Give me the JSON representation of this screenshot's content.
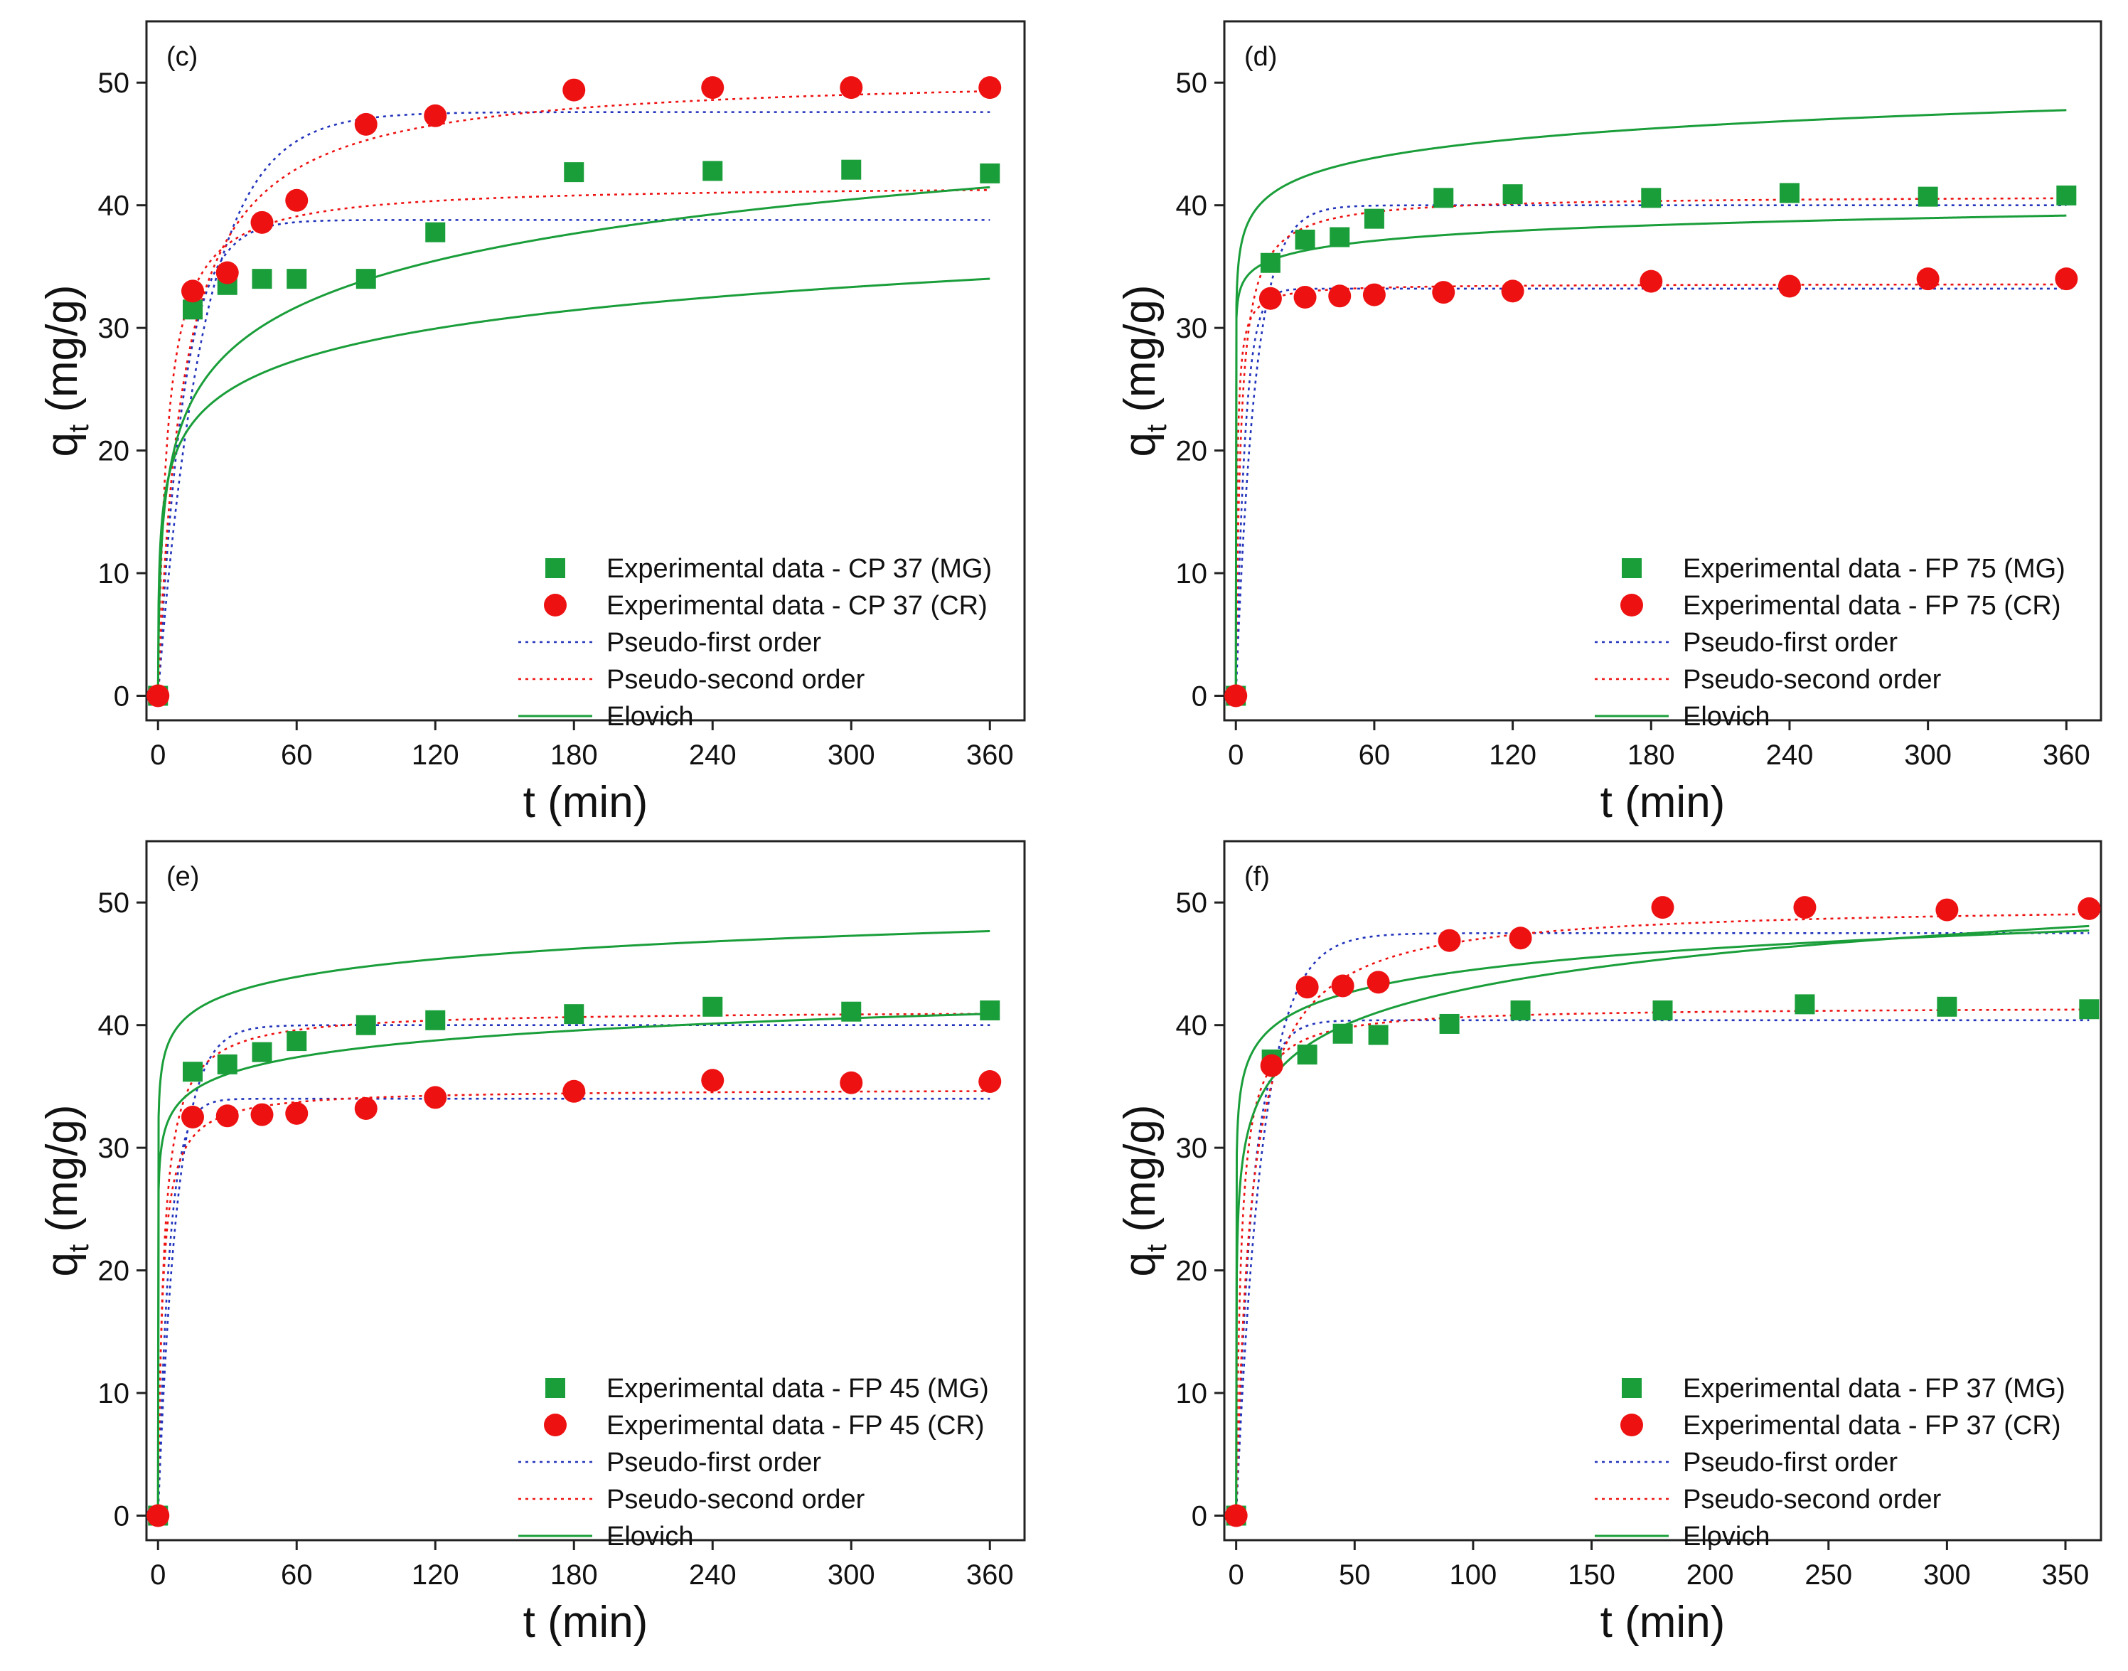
{
  "chart_data": [
    {
      "type": "scatter",
      "panel_label": "(c)",
      "xlabel": "t (min)",
      "ylabel": "q",
      "ylabel_sub": "t",
      "ylabel_unit": " (mg/g)",
      "xlim": [
        -5,
        375
      ],
      "ylim": [
        -2,
        55
      ],
      "xticks": [
        0,
        60,
        120,
        180,
        240,
        300,
        360
      ],
      "yticks": [
        0,
        10,
        20,
        30,
        40,
        50
      ],
      "legend_position": "bottom-right",
      "series": [
        {
          "name": "Experimental data - CP 37 (MG)",
          "kind": "points",
          "marker": "square",
          "color": "#1a9e3a",
          "x": [
            0,
            15,
            30,
            45,
            60,
            90,
            120,
            180,
            240,
            300,
            360
          ],
          "y": [
            0,
            31.5,
            33.5,
            34,
            34,
            34,
            37.8,
            42.7,
            42.8,
            42.9,
            42.6
          ]
        },
        {
          "name": "Experimental data - CP 37 (CR)",
          "kind": "points",
          "marker": "circle",
          "color": "#ee1111",
          "x": [
            0,
            15,
            30,
            45,
            60,
            90,
            120,
            180,
            240,
            300,
            360
          ],
          "y": [
            0,
            33,
            34.5,
            38.6,
            40.4,
            46.6,
            47.3,
            49.4,
            49.6,
            49.6,
            49.6
          ]
        },
        {
          "name": "Pseudo-first order",
          "kind": "line",
          "dash": "dot",
          "color": "#2233bb",
          "model": "pfo",
          "qe": [
            38.8,
            47.6
          ],
          "k": [
            0.09,
            0.05
          ]
        },
        {
          "name": "Pseudo-second order",
          "kind": "line",
          "dash": "dot",
          "color": "#ee1111",
          "model": "pso",
          "qe": [
            41.7,
            50.8
          ],
          "k": [
            0.006,
            0.0018
          ]
        },
        {
          "name": "Elovich",
          "kind": "line",
          "dash": "solid",
          "color": "#1a9e3a",
          "model": "elovich",
          "a": [
            100,
            30
          ],
          "b": [
            0.27,
            0.183
          ]
        }
      ]
    },
    {
      "type": "scatter",
      "panel_label": "(d)",
      "xlabel": "t (min)",
      "ylabel": "q",
      "ylabel_sub": "t",
      "ylabel_unit": " (mg/g)",
      "xlim": [
        -5,
        375
      ],
      "ylim": [
        -2,
        55
      ],
      "xticks": [
        0,
        60,
        120,
        180,
        240,
        300,
        360
      ],
      "yticks": [
        0,
        10,
        20,
        30,
        40,
        50
      ],
      "legend_position": "bottom-right",
      "series": [
        {
          "name": "Experimental data - FP 75 (MG)",
          "kind": "points",
          "marker": "square",
          "color": "#1a9e3a",
          "x": [
            0,
            15,
            30,
            45,
            60,
            90,
            120,
            180,
            240,
            300,
            360
          ],
          "y": [
            0,
            35.3,
            37.2,
            37.4,
            38.9,
            40.6,
            40.9,
            40.6,
            41,
            40.7,
            40.8
          ]
        },
        {
          "name": "Experimental data - FP 75 (CR)",
          "kind": "points",
          "marker": "circle",
          "color": "#ee1111",
          "x": [
            0,
            15,
            30,
            45,
            60,
            90,
            120,
            180,
            240,
            300,
            360
          ],
          "y": [
            0,
            32.4,
            32.5,
            32.6,
            32.7,
            32.9,
            33,
            33.8,
            33.4,
            34,
            34
          ]
        },
        {
          "name": "Pseudo-first order",
          "kind": "line",
          "dash": "dot",
          "color": "#2233bb",
          "model": "pfo",
          "qe": [
            40,
            33.2
          ],
          "k": [
            0.12,
            0.25
          ]
        },
        {
          "name": "Pseudo-second order",
          "kind": "line",
          "dash": "dot",
          "color": "#ee1111",
          "model": "pso",
          "qe": [
            40.8,
            33.6
          ],
          "k": [
            0.012,
            0.05
          ]
        },
        {
          "name": "Elovich",
          "kind": "line",
          "dash": "solid",
          "color": "#1a9e3a",
          "model": "elovich",
          "a": [
            21000000.0,
            2000000000000.0
          ],
          "b": [
            0.46,
            0.87
          ]
        }
      ]
    },
    {
      "type": "scatter",
      "panel_label": "(e)",
      "xlabel": "t (min)",
      "ylabel": "q",
      "ylabel_sub": "t",
      "ylabel_unit": " (mg/g)",
      "xlim": [
        -5,
        375
      ],
      "ylim": [
        -2,
        55
      ],
      "xticks": [
        0,
        60,
        120,
        180,
        240,
        300,
        360
      ],
      "yticks": [
        0,
        10,
        20,
        30,
        40,
        50
      ],
      "legend_position": "bottom-right",
      "series": [
        {
          "name": "Experimental data - FP 45 (MG)",
          "kind": "points",
          "marker": "square",
          "color": "#1a9e3a",
          "x": [
            0,
            15,
            30,
            45,
            60,
            90,
            120,
            180,
            240,
            300,
            360
          ],
          "y": [
            0,
            36.2,
            36.8,
            37.8,
            38.7,
            40,
            40.4,
            40.9,
            41.5,
            41.1,
            41.2
          ]
        },
        {
          "name": "Experimental data - FP 45 (CR)",
          "kind": "points",
          "marker": "circle",
          "color": "#ee1111",
          "x": [
            0,
            15,
            30,
            45,
            60,
            90,
            120,
            180,
            240,
            300,
            360
          ],
          "y": [
            0,
            32.5,
            32.6,
            32.7,
            32.8,
            33.2,
            34.1,
            34.6,
            35.5,
            35.3,
            35.4
          ]
        },
        {
          "name": "Pseudo-first order",
          "kind": "line",
          "dash": "dot",
          "color": "#2233bb",
          "model": "pfo",
          "qe": [
            40,
            34
          ],
          "k": [
            0.12,
            0.2
          ]
        },
        {
          "name": "Pseudo-second order",
          "kind": "line",
          "dash": "dot",
          "color": "#ee1111",
          "model": "pso",
          "qe": [
            41.2,
            34.8
          ],
          "k": [
            0.01,
            0.015
          ]
        },
        {
          "name": "Elovich",
          "kind": "line",
          "dash": "solid",
          "color": "#1a9e3a",
          "model": "elovich",
          "a": [
            50000000.0,
            5200000.0
          ],
          "b": [
            0.48,
            0.505
          ]
        }
      ]
    },
    {
      "type": "scatter",
      "panel_label": "(f)",
      "xlabel": "t (min)",
      "ylabel": "q",
      "ylabel_sub": "t",
      "ylabel_unit": " (mg/g)",
      "xlim": [
        -5,
        365
      ],
      "ylim": [
        -2,
        55
      ],
      "xticks": [
        0,
        50,
        100,
        150,
        200,
        250,
        300,
        350
      ],
      "yticks": [
        0,
        10,
        20,
        30,
        40,
        50
      ],
      "legend_position": "bottom-right",
      "series": [
        {
          "name": "Experimental data - FP 37 (MG)",
          "kind": "points",
          "marker": "square",
          "color": "#1a9e3a",
          "x": [
            0,
            15,
            30,
            45,
            60,
            90,
            120,
            180,
            240,
            300,
            360
          ],
          "y": [
            0,
            37.2,
            37.6,
            39.3,
            39.2,
            40.1,
            41.2,
            41.2,
            41.7,
            41.5,
            41.3
          ]
        },
        {
          "name": "Experimental data - FP 37 (CR)",
          "kind": "points",
          "marker": "circle",
          "color": "#ee1111",
          "x": [
            0,
            15,
            30,
            45,
            60,
            90,
            120,
            180,
            240,
            300,
            360
          ],
          "y": [
            0,
            36.7,
            43.1,
            43.2,
            43.5,
            46.9,
            47.1,
            49.6,
            49.6,
            49.4,
            49.5
          ]
        },
        {
          "name": "Pseudo-first order",
          "kind": "line",
          "dash": "dot",
          "color": "#2233bb",
          "model": "pfo",
          "qe": [
            40.4,
            47.5
          ],
          "k": [
            0.15,
            0.09
          ]
        },
        {
          "name": "Pseudo-second order",
          "kind": "line",
          "dash": "dot",
          "color": "#ee1111",
          "model": "pso",
          "qe": [
            41.5,
            49.9
          ],
          "k": [
            0.012,
            0.0032
          ]
        },
        {
          "name": "Elovich",
          "kind": "line",
          "dash": "solid",
          "color": "#1a9e3a",
          "model": "elovich",
          "a": [
            1350000.0,
            2300
          ],
          "b": [
            0.4,
            0.255
          ]
        }
      ]
    }
  ]
}
